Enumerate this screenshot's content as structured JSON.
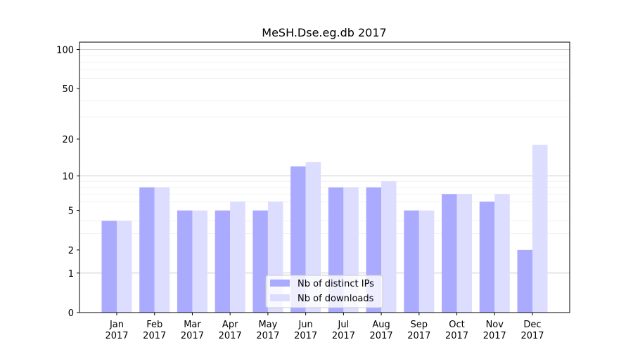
{
  "chart_data": {
    "type": "bar",
    "title": "MeSH.Dse.eg.db 2017",
    "xlabel": "",
    "ylabel": "",
    "yscale": "log(1+y)",
    "ylim": [
      0,
      114
    ],
    "yticks": [
      0,
      1,
      2,
      5,
      10,
      20,
      50,
      100
    ],
    "minor_gridlines": [
      3,
      4,
      6,
      7,
      8,
      9,
      30,
      40,
      60,
      70,
      80,
      90
    ],
    "major_gridlines": [
      1,
      10,
      100
    ],
    "categories": [
      "Jan\n2017",
      "Feb\n2017",
      "Mar\n2017",
      "Apr\n2017",
      "May\n2017",
      "Jun\n2017",
      "Jul\n2017",
      "Aug\n2017",
      "Sep\n2017",
      "Oct\n2017",
      "Nov\n2017",
      "Dec\n2017"
    ],
    "series": [
      {
        "name": "Nb of distinct IPs",
        "color": "#aaaaff",
        "values": [
          4,
          8,
          5,
          5,
          5,
          12,
          8,
          8,
          5,
          7,
          6,
          2
        ]
      },
      {
        "name": "Nb of downloads",
        "color": "#ddddff",
        "values": [
          4,
          8,
          5,
          6,
          6,
          13,
          8,
          9,
          5,
          7,
          7,
          18
        ]
      }
    ],
    "legend": "bottom-center",
    "grid": true
  }
}
